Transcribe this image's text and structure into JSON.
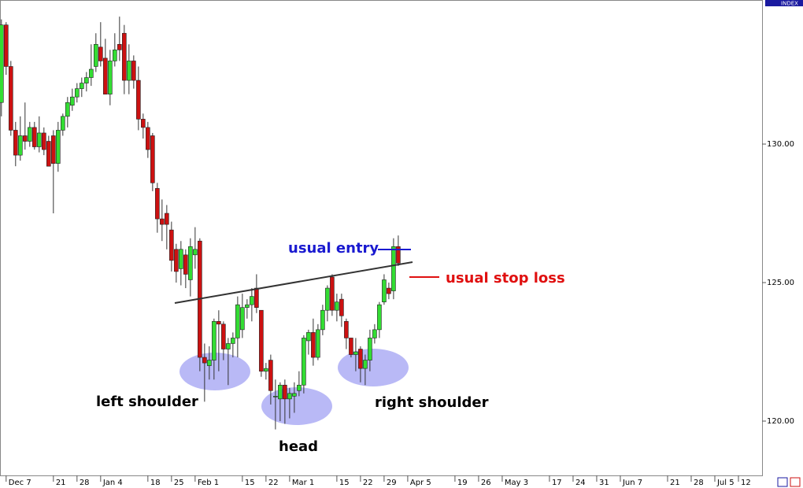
{
  "chart_data": {
    "type": "candlestick",
    "badge": "INDEX",
    "annotations": [
      "usual entry",
      "usual stop loss",
      "left shoulder",
      "head",
      "right shoulder"
    ],
    "x": [
      -1,
      0,
      1,
      2,
      3,
      4,
      5,
      6,
      7,
      8,
      9,
      10,
      11,
      12,
      13,
      14,
      15,
      16,
      17,
      18,
      19,
      20,
      21,
      22,
      23,
      24,
      25,
      26,
      27,
      28,
      29,
      30,
      31,
      32,
      33,
      34,
      35,
      36,
      37,
      38,
      39,
      40,
      41,
      42,
      43,
      44,
      45,
      46,
      47,
      48,
      49,
      50,
      51,
      52,
      53,
      54,
      55,
      56,
      57,
      58,
      59,
      60,
      61,
      62,
      63,
      64,
      65,
      66,
      67,
      68,
      69,
      70,
      71,
      72,
      73,
      74,
      75,
      76,
      77,
      78,
      79,
      80,
      81,
      82,
      83
    ],
    "open": [
      131.5,
      134.3,
      132.8,
      130.5,
      129.6,
      130.3,
      130.1,
      130.6,
      129.9,
      130.4,
      130.1,
      130.3,
      129.3,
      130.5,
      131,
      131.4,
      131.7,
      132,
      132.2,
      132.4,
      132.8,
      133.5,
      133.1,
      131.8,
      133,
      133.6,
      134,
      132.3,
      133,
      132.3,
      130.9,
      130.6,
      130.3,
      128.4,
      127.3,
      127.5,
      126.9,
      126.2,
      125.5,
      126,
      125.1,
      126,
      126.5,
      122.3,
      122,
      122.2,
      123.6,
      123.5,
      122.6,
      122.8,
      123,
      123.3,
      124.1,
      124.2,
      124.8,
      124,
      121.8,
      122.2,
      120.9,
      120.8,
      121.3,
      120.8,
      120.9,
      121.1,
      121.3,
      122.9,
      123.2,
      122.3,
      123.3,
      124,
      125.2,
      124,
      124.4,
      123.6,
      123,
      122.4,
      122.6,
      121.9,
      122.2,
      123,
      123.3,
      124.3,
      124.8,
      124.7,
      126.3
    ],
    "high": [
      134.5,
      134.4,
      133,
      130.8,
      131,
      131.5,
      130.8,
      130.8,
      131,
      130.6,
      130.3,
      130.5,
      130.8,
      131.1,
      131.7,
      132,
      132.2,
      132.4,
      132.6,
      133.6,
      134,
      134.4,
      133.8,
      133.4,
      134,
      134.6,
      134.3,
      133.6,
      133.2,
      132.8,
      131.1,
      130.8,
      130.4,
      128.6,
      128,
      127.8,
      127.2,
      126.4,
      126.5,
      126.2,
      126.6,
      127,
      126.6,
      122.8,
      122.7,
      123.7,
      124,
      123.6,
      123,
      123.2,
      124.5,
      124.6,
      124.4,
      124.8,
      125.3,
      124,
      122.1,
      122.4,
      121.5,
      121.4,
      121.5,
      121.2,
      121.4,
      121.8,
      123.1,
      123.3,
      123.7,
      123.5,
      124.2,
      124.9,
      125.3,
      124.6,
      124.6,
      123.7,
      123,
      123,
      122.7,
      122.4,
      123.3,
      123.5,
      124.3,
      125.3,
      125,
      126.6,
      126.7
    ],
    "low": [
      131,
      132.5,
      130.3,
      129.2,
      129.4,
      129.8,
      129.9,
      129.8,
      129.7,
      129.6,
      129.2,
      127.5,
      129,
      130.3,
      130.6,
      131.2,
      131.5,
      131.7,
      131.9,
      132.1,
      132.6,
      132.8,
      131.8,
      131.4,
      132.8,
      133,
      131.8,
      131.8,
      132,
      130.5,
      130.2,
      129.5,
      128.3,
      126.8,
      126.5,
      126.2,
      125.4,
      125,
      124.9,
      124.8,
      124.5,
      125.5,
      121.8,
      120.7,
      121.5,
      121.5,
      121.8,
      122.2,
      121.3,
      122.3,
      122.3,
      123,
      123.7,
      123.6,
      123.9,
      121.6,
      121.5,
      120.6,
      119.7,
      120,
      119.9,
      120.1,
      120.3,
      120.9,
      121,
      122.4,
      122,
      122.2,
      123.1,
      123.6,
      123.8,
      123.6,
      123.4,
      122.6,
      122.3,
      121.8,
      121.4,
      121.3,
      121.8,
      122.8,
      123,
      124.2,
      124.4,
      124.4,
      125.6
    ],
    "close": [
      134.3,
      132.8,
      130.5,
      129.6,
      130.3,
      130.1,
      130.6,
      129.9,
      130.4,
      129.8,
      129.2,
      129.3,
      130.5,
      131,
      131.5,
      131.7,
      132,
      132.2,
      132.4,
      132.7,
      133.6,
      133,
      131.8,
      133,
      133.4,
      133.4,
      132.3,
      133,
      132.3,
      130.9,
      130.6,
      129.8,
      128.6,
      127.3,
      127.1,
      127.1,
      125.8,
      125.4,
      126.2,
      125.3,
      126.3,
      126.2,
      122.3,
      122.1,
      122.2,
      123.6,
      123.5,
      122.6,
      122.8,
      123,
      124.2,
      124.1,
      124.2,
      124.5,
      124.1,
      121.8,
      121.9,
      121.1,
      120.9,
      121.3,
      120.8,
      121,
      121,
      121.3,
      123,
      123.2,
      122.3,
      123.3,
      124,
      124.8,
      124,
      124.3,
      123.8,
      123,
      122.4,
      122.5,
      121.9,
      122.2,
      123,
      123.3,
      124.2,
      125.1,
      124.6,
      126.3,
      125.7
    ],
    "up_color": "#33dd33",
    "down_color": "#cc1111",
    "xlim": [
      -1.3,
      160
    ],
    "ylim": [
      118.04,
      135.2
    ],
    "xticks": [
      {
        "value": 0,
        "label": "Dec 7"
      },
      {
        "value": 10,
        "label": "21"
      },
      {
        "value": 15,
        "label": "28"
      },
      {
        "value": 20,
        "label": "Jan 4"
      },
      {
        "value": 30,
        "label": "18"
      },
      {
        "value": 35,
        "label": "25"
      },
      {
        "value": 40,
        "label": "Feb 1"
      },
      {
        "value": 50,
        "label": "15"
      },
      {
        "value": 55,
        "label": "22"
      },
      {
        "value": 60,
        "label": "Mar 1"
      },
      {
        "value": 70,
        "label": "15"
      },
      {
        "value": 75,
        "label": "22"
      },
      {
        "value": 80,
        "label": "29"
      },
      {
        "value": 85,
        "label": "Apr 5"
      },
      {
        "value": 95,
        "label": "19"
      },
      {
        "value": 100,
        "label": "26"
      },
      {
        "value": 105,
        "label": "May 3"
      },
      {
        "value": 115,
        "label": "17"
      },
      {
        "value": 120,
        "label": "24"
      },
      {
        "value": 125,
        "label": "31"
      },
      {
        "value": 130,
        "label": "Jun 7"
      },
      {
        "value": 140,
        "label": "21"
      },
      {
        "value": 145,
        "label": "28"
      },
      {
        "value": 150,
        "label": "Jul 5"
      },
      {
        "value": 155,
        "label": "12"
      }
    ],
    "yticks": [
      {
        "value": 120,
        "label": "120.00"
      },
      {
        "value": 125,
        "label": "125.00"
      },
      {
        "value": 130,
        "label": "130.00"
      }
    ]
  }
}
